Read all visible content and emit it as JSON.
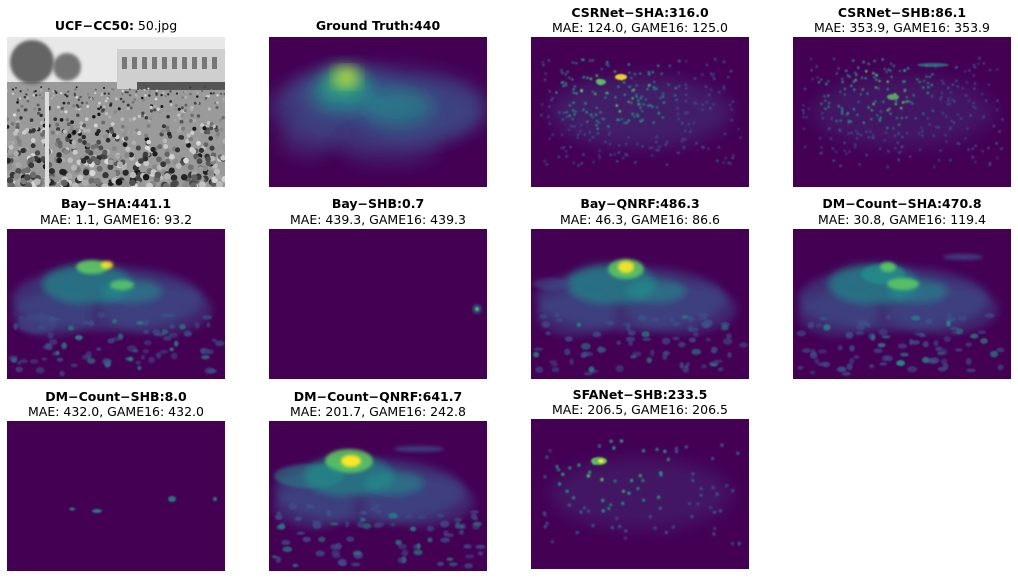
{
  "panels": [
    {
      "name": "photo",
      "bold": "UCF−CC50:",
      "normal": " 50.jpg",
      "sub": "",
      "kind": "photo"
    },
    {
      "name": "ground-truth",
      "bold": "Ground Truth:440",
      "normal": "",
      "sub": "",
      "kind": "gt"
    },
    {
      "name": "csrnet-sha",
      "bold": "CSRNet−SHA:316.0",
      "normal": "",
      "sub": "MAE: 124.0, GAME16: 125.0",
      "kind": "csr-sha"
    },
    {
      "name": "csrnet-shb",
      "bold": "CSRNet−SHB:86.1",
      "normal": "",
      "sub": "MAE: 353.9, GAME16: 353.9",
      "kind": "csr-shb"
    },
    {
      "name": "bay-sha",
      "bold": "Bay−SHA:441.1",
      "normal": "",
      "sub": "MAE: 1.1, GAME16: 93.2",
      "kind": "bay-sha"
    },
    {
      "name": "bay-shb",
      "bold": "Bay−SHB:0.7",
      "normal": "",
      "sub": "MAE: 439.3, GAME16: 439.3",
      "kind": "empty-dot"
    },
    {
      "name": "bay-qnrf",
      "bold": "Bay−QNRF:486.3",
      "normal": "",
      "sub": "MAE: 46.3, GAME16: 86.6",
      "kind": "bay-qnrf"
    },
    {
      "name": "dm-count-sha",
      "bold": "DM−Count−SHA:470.8",
      "normal": "",
      "sub": "MAE: 30.8, GAME16: 119.4",
      "kind": "dm-sha"
    },
    {
      "name": "dm-count-shb",
      "bold": "DM−Count−SHB:8.0",
      "normal": "",
      "sub": "MAE: 432.0, GAME16: 432.0",
      "kind": "dm-shb"
    },
    {
      "name": "dm-count-qnrf",
      "bold": "DM−Count−QNRF:641.7",
      "normal": "",
      "sub": "MAE: 201.7, GAME16: 242.8",
      "kind": "dm-qnrf"
    },
    {
      "name": "sfanet-shb",
      "bold": "SFANet−SHB:233.5",
      "normal": "",
      "sub": "MAE: 206.5, GAME16: 206.5",
      "kind": "sfa-shb"
    }
  ],
  "colors": {
    "bg": "#440154",
    "mid": "#3b528b",
    "teal": "#21918c",
    "green": "#5ec962",
    "yellow": "#fde725"
  }
}
